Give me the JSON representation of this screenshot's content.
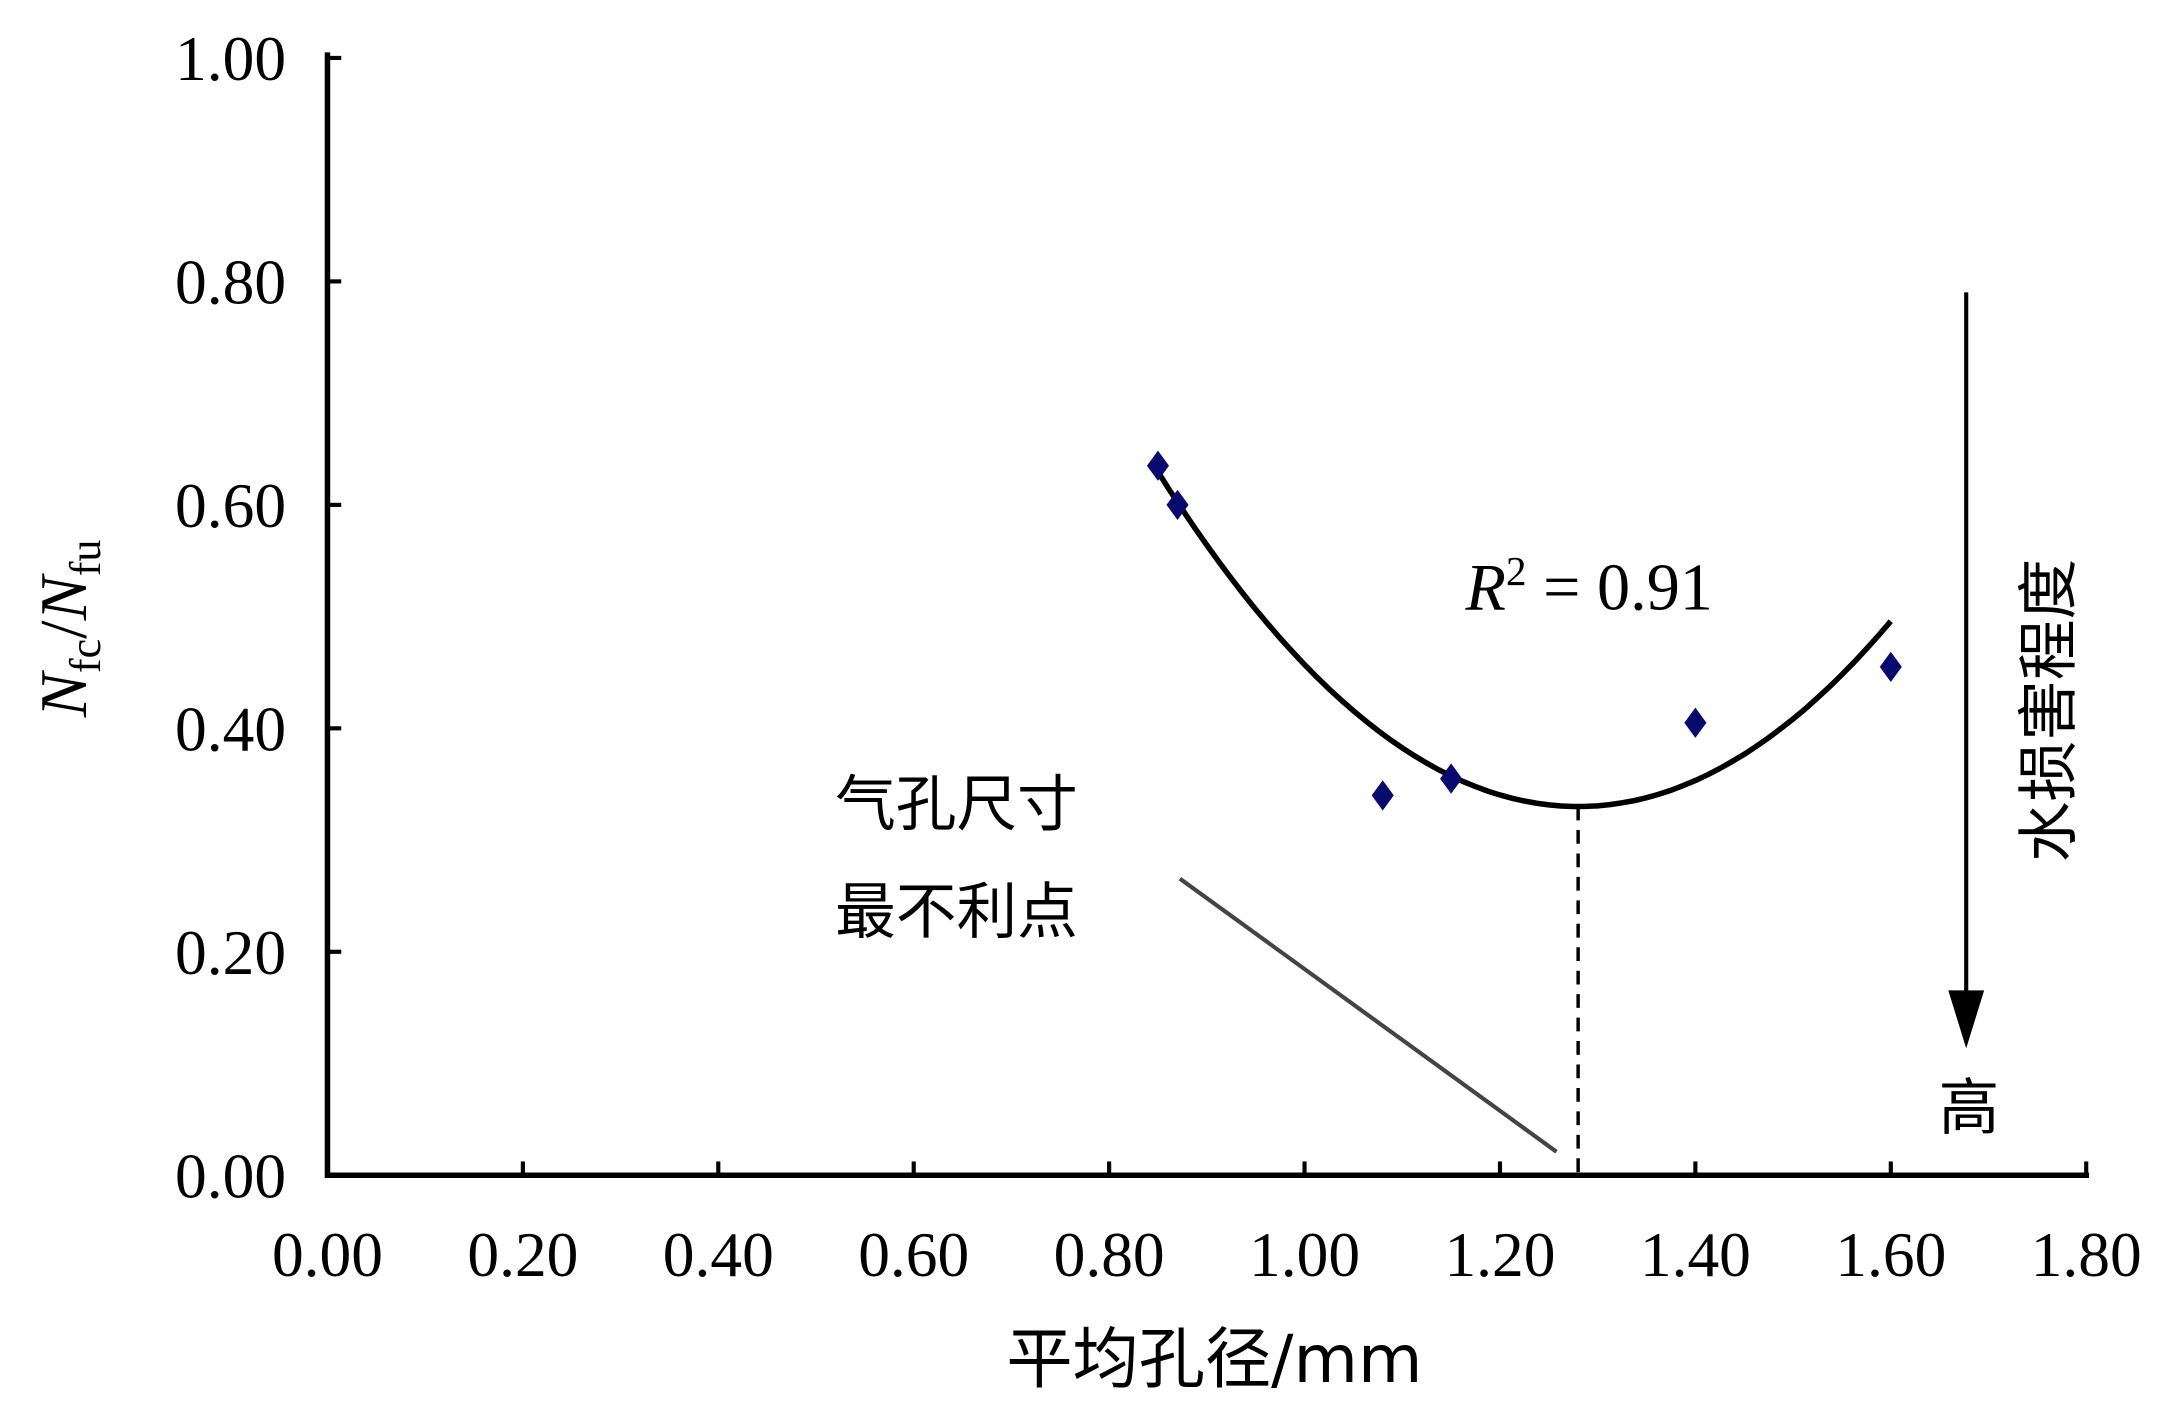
{
  "chart_data": {
    "type": "scatter",
    "xlabel": "平均孔径/mm",
    "ylabel": {
      "main1": "N",
      "sub1": "fc",
      "slash": "/",
      "main2": "N",
      "sub2": "fu"
    },
    "xlim": [
      0,
      1.8
    ],
    "ylim": [
      0,
      1.0
    ],
    "x_ticks": [
      "0.00",
      "0.20",
      "0.40",
      "0.60",
      "0.80",
      "1.00",
      "1.20",
      "1.40",
      "1.60",
      "1.80"
    ],
    "y_ticks": [
      "0.00",
      "0.20",
      "0.40",
      "0.60",
      "0.80",
      "1.00"
    ],
    "grid": false,
    "points": [
      {
        "x": 0.85,
        "y": 0.635
      },
      {
        "x": 0.87,
        "y": 0.6
      },
      {
        "x": 1.08,
        "y": 0.34
      },
      {
        "x": 1.15,
        "y": 0.355
      },
      {
        "x": 1.4,
        "y": 0.405
      },
      {
        "x": 1.6,
        "y": 0.455
      }
    ],
    "point_color": "#0a0a6e",
    "fit": {
      "type": "quadratic",
      "vertex_x": 1.28,
      "vertex_y": 0.33,
      "a": 1.62,
      "x_range": [
        0.85,
        1.6
      ]
    },
    "r2_label": {
      "r": "R",
      "sup": "2",
      "rest": " = 0.91"
    },
    "annotation": {
      "line1": "气孔尺寸",
      "line2": "最不利点",
      "target_x": 1.28
    },
    "side_label": "水损害程度",
    "arrow_end_label": "高"
  }
}
